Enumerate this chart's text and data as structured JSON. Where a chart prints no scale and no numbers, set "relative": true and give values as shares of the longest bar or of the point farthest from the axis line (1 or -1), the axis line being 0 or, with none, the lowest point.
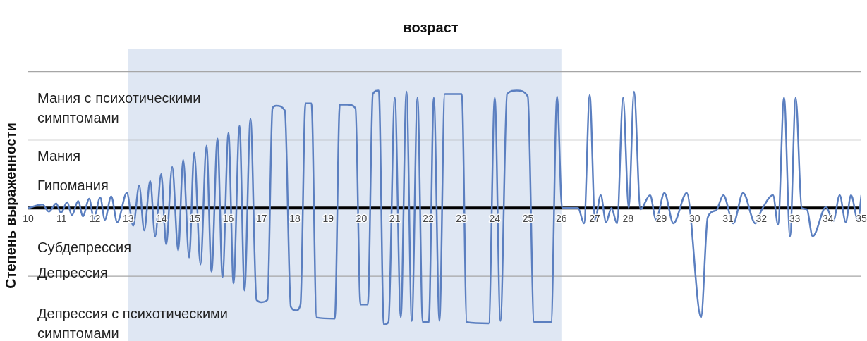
{
  "chart_data": {
    "type": "line",
    "title": "возраст",
    "ylabel": "Степень выраженности",
    "relative": true,
    "legend": false,
    "grid": false,
    "marker": "none",
    "line_style": "solid",
    "xlim": [
      10,
      35
    ],
    "xticks": [
      10,
      11,
      12,
      13,
      14,
      15,
      16,
      17,
      18,
      19,
      20,
      21,
      22,
      23,
      24,
      25,
      26,
      27,
      28,
      29,
      30,
      31,
      32,
      33,
      34,
      35
    ],
    "annotations": [
      "Мания с психотическими симптомами",
      "Мания",
      "Гипомания",
      "Субдепрессия",
      "Депрессия",
      "Депрессия с психотическими симптомами"
    ],
    "ref_lines": [
      {
        "axis": "y",
        "value": 1.16,
        "color": "#a6a6a6"
      },
      {
        "axis": "y",
        "value": 0.58,
        "color": "#a6a6a6"
      },
      {
        "axis": "y",
        "value": -0.58,
        "color": "#a6a6a6"
      }
    ],
    "bands": [
      {
        "axis": "x",
        "from": 13,
        "to": 26,
        "color": "#dfe7f3"
      }
    ],
    "series": [
      {
        "color": "#5b7fc0",
        "x": [
          10.0,
          10.43,
          10.62,
          10.84,
          10.98,
          11.17,
          11.31,
          11.5,
          11.64,
          11.83,
          11.97,
          12.16,
          12.3,
          12.49,
          12.67,
          12.96,
          13.15,
          13.33,
          13.48,
          13.66,
          13.81,
          13.99,
          14.14,
          14.32,
          14.5,
          14.65,
          14.83,
          14.98,
          15.17,
          15.35,
          15.5,
          15.68,
          15.83,
          16.01,
          16.16,
          16.34,
          16.49,
          16.67,
          16.85,
          17.0,
          17.18,
          17.33,
          17.44,
          17.7,
          17.88,
          18.03,
          18.17,
          18.32,
          18.5,
          18.65,
          19.2,
          19.35,
          19.57,
          19.82,
          19.97,
          20.19,
          20.34,
          20.52,
          20.67,
          20.81,
          21.0,
          21.18,
          21.35,
          21.51,
          21.68,
          21.84,
          22.02,
          22.17,
          22.34,
          22.5,
          23.01,
          23.16,
          23.82,
          24.0,
          24.17,
          24.37,
          24.66,
          24.99,
          25.18,
          25.69,
          25.87,
          26.02,
          26.5,
          26.68,
          26.85,
          27.01,
          27.18,
          27.34,
          27.5,
          27.67,
          27.85,
          28.02,
          28.18,
          28.37,
          28.66,
          28.84,
          29.09,
          29.36,
          29.76,
          30.19,
          30.39,
          30.64,
          30.86,
          31.16,
          31.45,
          31.82,
          32.0,
          32.35,
          32.5,
          32.68,
          32.86,
          33.03,
          33.21,
          33.36,
          33.54,
          33.94,
          34.16,
          34.35,
          34.53,
          34.69,
          34.9,
          35.0
        ],
        "values": [
          0,
          0.03,
          -0.03,
          0.04,
          -0.04,
          0.05,
          -0.06,
          0.06,
          -0.07,
          0.08,
          -0.09,
          0.09,
          -0.1,
          0.1,
          -0.12,
          0.13,
          -0.15,
          0.19,
          -0.19,
          0.23,
          -0.24,
          0.29,
          -0.31,
          0.35,
          -0.36,
          0.41,
          -0.42,
          0.47,
          -0.48,
          0.53,
          -0.54,
          0.59,
          -0.59,
          0.64,
          -0.64,
          0.7,
          -0.7,
          0.76,
          -0.78,
          -0.8,
          -0.78,
          0.85,
          0.87,
          0.83,
          -0.84,
          -0.87,
          -0.82,
          0.89,
          0.89,
          -0.93,
          -0.94,
          0.88,
          0.88,
          0.85,
          -0.82,
          -0.82,
          0.97,
          1.0,
          -0.99,
          -0.97,
          0.94,
          -0.93,
          0.99,
          -0.96,
          0.94,
          -0.97,
          -0.97,
          0.94,
          -0.96,
          0.97,
          0.97,
          -0.97,
          -0.98,
          0.94,
          -0.96,
          0.97,
          1.0,
          0.95,
          -0.97,
          -0.97,
          0.95,
          0,
          0,
          -0.13,
          0.96,
          -0.1,
          0.11,
          -0.12,
          0,
          -0.13,
          0.94,
          0,
          0.99,
          -0.01,
          0.11,
          -0.1,
          0.13,
          -0.13,
          0.13,
          -0.93,
          -0.08,
          -0.02,
          0.11,
          -0.13,
          0.13,
          -0.13,
          -0.02,
          0.11,
          -0.14,
          0.94,
          -0.24,
          0.94,
          0,
          -0.01,
          -0.24,
          0.01,
          -0.11,
          0.11,
          -0.12,
          0.11,
          -0.11,
          0.11
        ]
      }
    ]
  }
}
